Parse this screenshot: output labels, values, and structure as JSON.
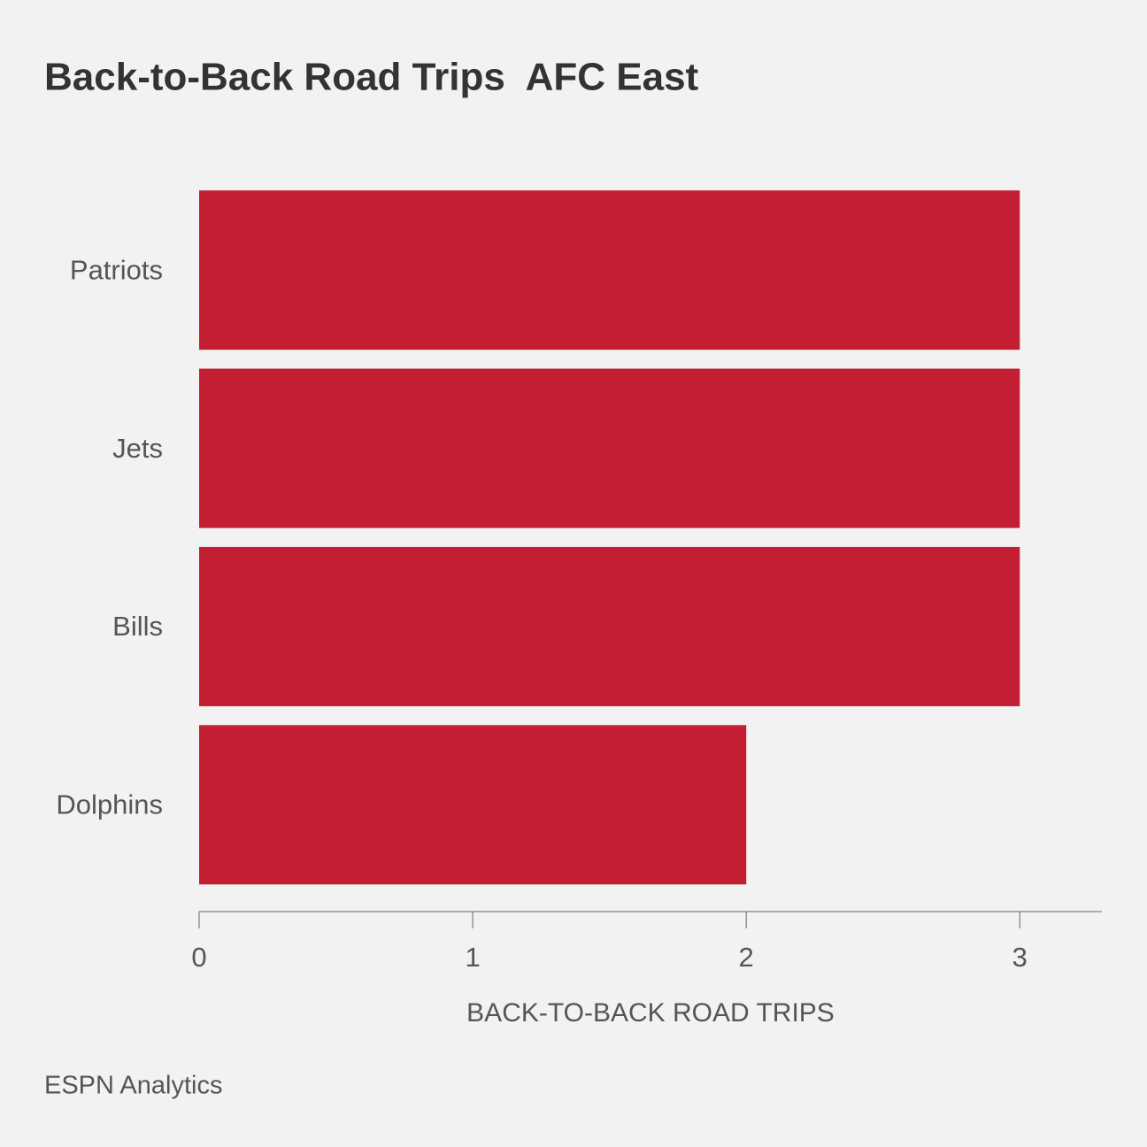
{
  "chart_data": {
    "type": "bar",
    "orientation": "horizontal",
    "title": "Back-to-Back Road Trips  AFC East",
    "categories": [
      "Patriots",
      "Jets",
      "Bills",
      "Dolphins"
    ],
    "values": [
      3,
      3,
      3,
      2
    ],
    "color": "#c41e32",
    "xlabel": "BACK-TO-BACK ROAD TRIPS",
    "xlim": [
      0,
      3.3
    ],
    "xticks": [
      0,
      1,
      2,
      3
    ],
    "source": "ESPN Analytics"
  }
}
